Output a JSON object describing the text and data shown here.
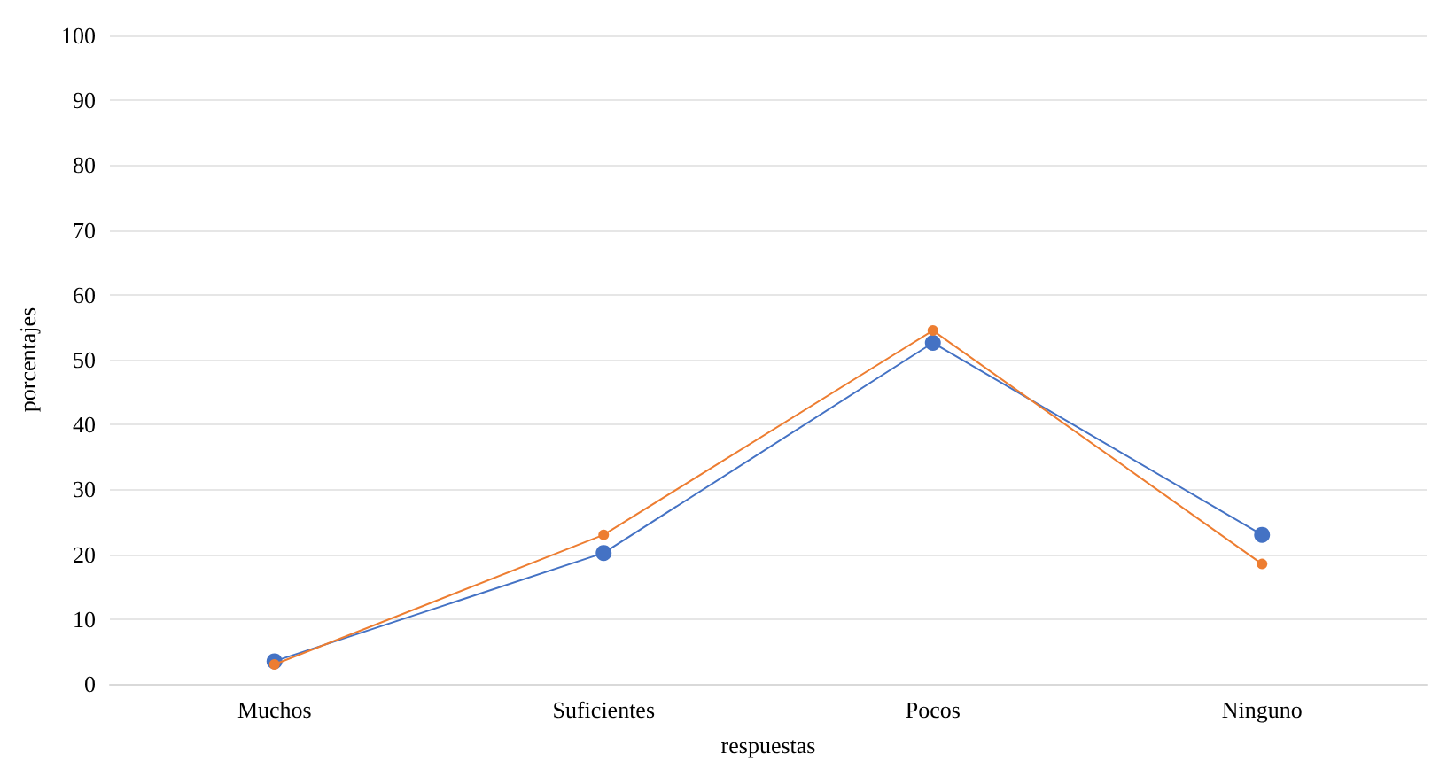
{
  "chart_data": {
    "type": "line",
    "xlabel": "respuestas",
    "ylabel": "porcentajes",
    "categories": [
      "Muchos",
      "Suficientes",
      "Pocos",
      "Ninguno"
    ],
    "series": [
      {
        "color": "#4472c4",
        "values": [
          3.5,
          20.2,
          52.6,
          23
        ]
      },
      {
        "color": "#ed7d31",
        "values": [
          3,
          23,
          54.5,
          18.5
        ]
      }
    ],
    "ylim": [
      0,
      100
    ],
    "yticks": [
      0,
      10,
      20,
      30,
      40,
      50,
      60,
      70,
      80,
      90,
      100
    ],
    "grid": "y",
    "marker": "circle",
    "line_style": "solid"
  }
}
